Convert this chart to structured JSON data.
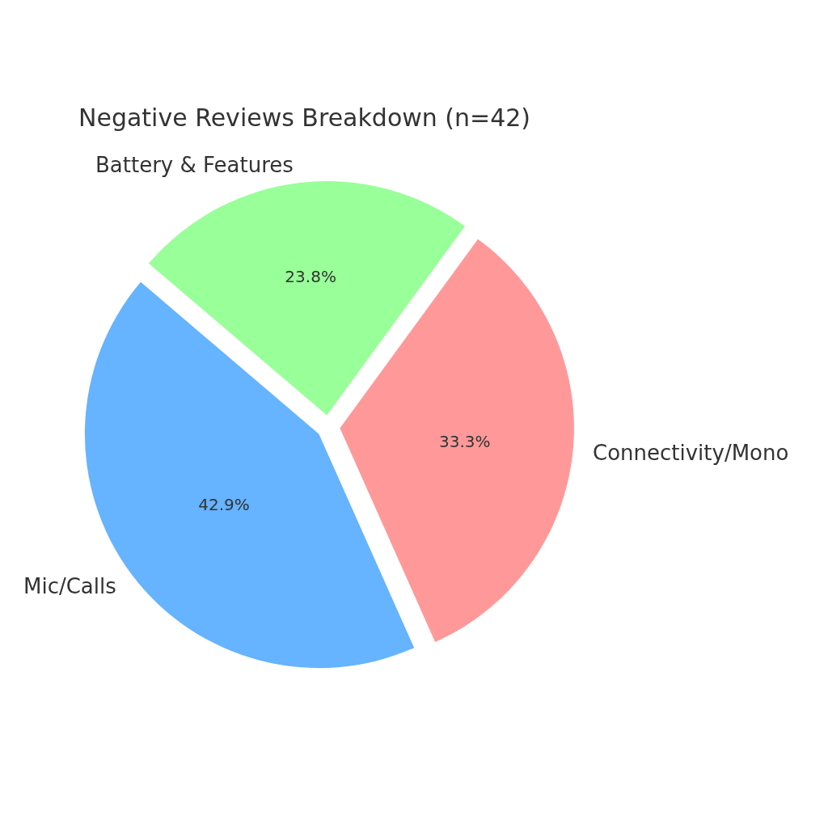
{
  "chart_data": {
    "type": "pie",
    "title": "Negative Reviews Breakdown (n=42)",
    "categories": [
      "Mic/Calls",
      "Connectivity/Mono",
      "Battery & Features"
    ],
    "values": [
      42.9,
      33.3,
      23.8
    ],
    "colors": [
      "#66b3ff",
      "#ff9999",
      "#99ff99"
    ],
    "value_labels": [
      "42.9%",
      "33.3%",
      "23.8%"
    ],
    "legend": false
  }
}
